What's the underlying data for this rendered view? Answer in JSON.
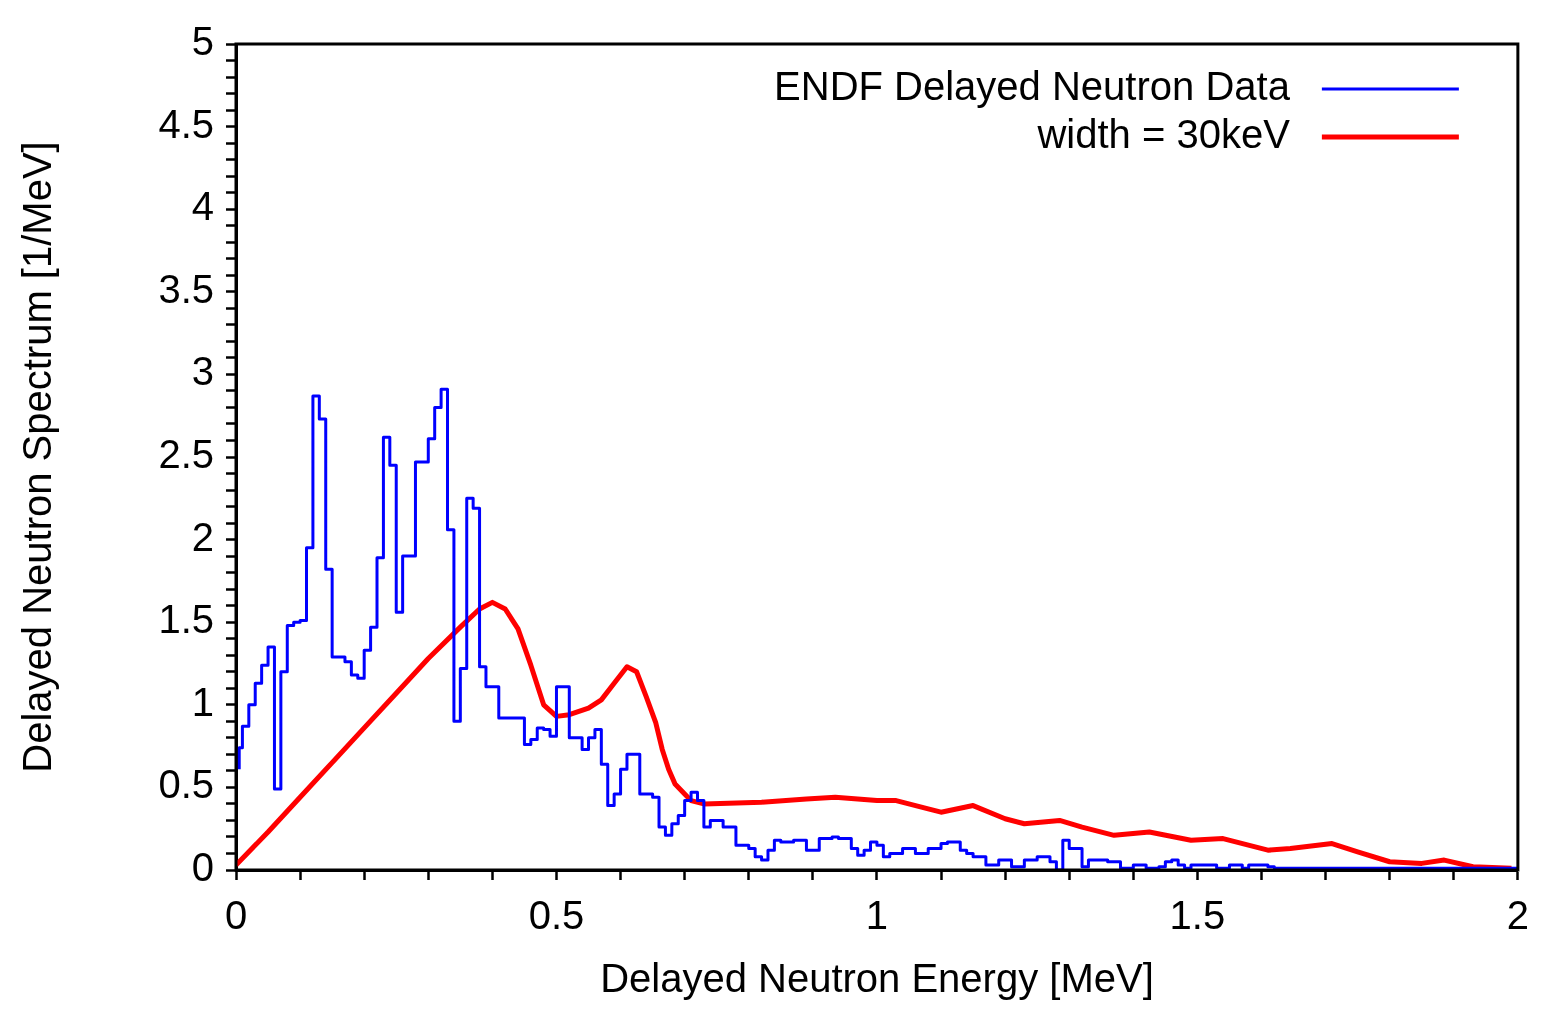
{
  "chart_data": {
    "type": "step",
    "xlabel": "Delayed Neutron Energy [MeV]",
    "ylabel": "Delayed Neutron Spectrum [1/MeV]",
    "xlim": [
      0,
      2
    ],
    "ylim": [
      0,
      5
    ],
    "xticks": [
      0,
      {
        "value": 0.1,
        "label": null
      },
      {
        "value": 0.2,
        "label": null
      },
      {
        "value": 0.3,
        "label": null
      },
      {
        "value": 0.4,
        "label": null
      },
      0.5,
      {
        "value": 0.6,
        "label": null
      },
      {
        "value": 0.7,
        "label": null
      },
      {
        "value": 0.8,
        "label": null
      },
      {
        "value": 0.9,
        "label": null
      },
      1,
      {
        "value": 1.1,
        "label": null
      },
      {
        "value": 1.2,
        "label": null
      },
      {
        "value": 1.3,
        "label": null
      },
      {
        "value": 1.4,
        "label": null
      },
      1.5,
      {
        "value": 1.6,
        "label": null
      },
      {
        "value": 1.7,
        "label": null
      },
      {
        "value": 1.8,
        "label": null
      },
      {
        "value": 1.9,
        "label": null
      },
      2
    ],
    "yticks": [
      0,
      {
        "value": 0.1,
        "label": null
      },
      {
        "value": 0.2,
        "label": null
      },
      {
        "value": 0.3,
        "label": null
      },
      {
        "value": 0.4,
        "label": null
      },
      0.5,
      {
        "value": 0.6,
        "label": null
      },
      {
        "value": 0.7,
        "label": null
      },
      {
        "value": 0.8,
        "label": null
      },
      {
        "value": 0.9,
        "label": null
      },
      1,
      {
        "value": 1.1,
        "label": null
      },
      {
        "value": 1.2,
        "label": null
      },
      {
        "value": 1.3,
        "label": null
      },
      {
        "value": 1.4,
        "label": null
      },
      1.5,
      {
        "value": 1.6,
        "label": null
      },
      {
        "value": 1.7,
        "label": null
      },
      {
        "value": 1.8,
        "label": null
      },
      {
        "value": 1.9,
        "label": null
      },
      2,
      {
        "value": 2.1,
        "label": null
      },
      {
        "value": 2.2,
        "label": null
      },
      {
        "value": 2.3,
        "label": null
      },
      {
        "value": 2.4,
        "label": null
      },
      2.5,
      {
        "value": 2.6,
        "label": null
      },
      {
        "value": 2.7,
        "label": null
      },
      {
        "value": 2.8,
        "label": null
      },
      {
        "value": 2.9,
        "label": null
      },
      3,
      {
        "value": 3.1,
        "label": null
      },
      {
        "value": 3.2,
        "label": null
      },
      {
        "value": 3.3,
        "label": null
      },
      {
        "value": 3.4,
        "label": null
      },
      3.5,
      {
        "value": 3.6,
        "label": null
      },
      {
        "value": 3.7,
        "label": null
      },
      {
        "value": 3.8,
        "label": null
      },
      {
        "value": 3.9,
        "label": null
      },
      4,
      {
        "value": 4.1,
        "label": null
      },
      {
        "value": 4.2,
        "label": null
      },
      {
        "value": 4.3,
        "label": null
      },
      {
        "value": 4.4,
        "label": null
      },
      4.5,
      {
        "value": 4.6,
        "label": null
      },
      {
        "value": 4.7,
        "label": null
      },
      {
        "value": 4.8,
        "label": null
      },
      {
        "value": 4.9,
        "label": null
      },
      5
    ],
    "grid": false,
    "legend": "top right",
    "series": [
      {
        "name": "ENDF Delayed Neutron Data",
        "color": "#0000ff",
        "x": [
          0.005,
          0.01,
          0.02,
          0.03,
          0.04,
          0.05,
          0.06,
          0.07,
          0.08,
          0.09,
          0.1,
          0.11,
          0.12,
          0.13,
          0.14,
          0.15,
          0.17,
          0.18,
          0.19,
          0.2,
          0.21,
          0.22,
          0.23,
          0.24,
          0.25,
          0.26,
          0.28,
          0.3,
          0.31,
          0.32,
          0.33,
          0.34,
          0.35,
          0.36,
          0.37,
          0.38,
          0.39,
          0.41,
          0.45,
          0.46,
          0.47,
          0.48,
          0.49,
          0.5,
          0.52,
          0.54,
          0.55,
          0.56,
          0.57,
          0.58,
          0.59,
          0.6,
          0.61,
          0.63,
          0.65,
          0.66,
          0.67,
          0.68,
          0.69,
          0.7,
          0.71,
          0.72,
          0.73,
          0.74,
          0.76,
          0.78,
          0.8,
          0.81,
          0.82,
          0.83,
          0.84,
          0.85,
          0.87,
          0.89,
          0.91,
          0.93,
          0.94,
          0.96,
          0.97,
          0.98,
          0.99,
          1.0,
          1.01,
          1.02,
          1.04,
          1.06,
          1.08,
          1.1,
          1.11,
          1.13,
          1.14,
          1.15,
          1.17,
          1.19,
          1.21,
          1.23,
          1.25,
          1.27,
          1.28,
          1.29,
          1.3,
          1.32,
          1.33,
          1.36,
          1.38,
          1.4,
          1.42,
          1.44,
          1.45,
          1.46,
          1.47,
          1.48,
          1.49,
          1.53,
          1.55,
          1.57,
          1.58,
          1.61,
          1.62,
          1.64,
          1.66,
          2.0
        ],
        "values": [
          0.61,
          0.74,
          0.87,
          1.0,
          1.13,
          1.24,
          1.35,
          0.49,
          1.2,
          1.48,
          1.5,
          1.51,
          1.95,
          2.87,
          2.73,
          1.82,
          1.29,
          1.26,
          1.18,
          1.16,
          1.33,
          1.47,
          1.89,
          2.62,
          2.45,
          1.56,
          1.9,
          2.47,
          2.61,
          2.8,
          2.91,
          2.06,
          0.9,
          1.22,
          2.25,
          2.19,
          1.23,
          1.11,
          0.92,
          0.76,
          0.79,
          0.86,
          0.85,
          0.81,
          1.11,
          0.8,
          0.73,
          0.8,
          0.85,
          0.64,
          0.39,
          0.46,
          0.61,
          0.7,
          0.46,
          0.44,
          0.26,
          0.21,
          0.28,
          0.33,
          0.42,
          0.47,
          0.42,
          0.26,
          0.3,
          0.26,
          0.15,
          0.13,
          0.08,
          0.06,
          0.12,
          0.18,
          0.17,
          0.18,
          0.12,
          0.19,
          0.2,
          0.19,
          0.13,
          0.09,
          0.12,
          0.17,
          0.15,
          0.08,
          0.1,
          0.13,
          0.1,
          0.13,
          0.16,
          0.17,
          0.12,
          0.1,
          0.08,
          0.03,
          0.06,
          0.02,
          0.06,
          0.08,
          0.05,
          0.0,
          0.18,
          0.13,
          0.02,
          0.06,
          0.05,
          0.01,
          0.03,
          0.01,
          0.02,
          0.05,
          0.06,
          0.03,
          0.01,
          0.03,
          0.01,
          0.03,
          0.01,
          0.03,
          0.02,
          0.01,
          0.01,
          0.01
        ]
      },
      {
        "name": "width = 30keV",
        "color": "#ff0000",
        "type": "line",
        "x": [
          0,
          0.05,
          0.1,
          0.15,
          0.2,
          0.25,
          0.3,
          0.35,
          0.38,
          0.4,
          0.42,
          0.44,
          0.46,
          0.48,
          0.5,
          0.52,
          0.55,
          0.57,
          0.59,
          0.61,
          0.625,
          0.64,
          0.655,
          0.665,
          0.675,
          0.685,
          0.7,
          0.71,
          0.73,
          0.82,
          0.89,
          0.935,
          1.0,
          1.03,
          1.08,
          1.1,
          1.15,
          1.2,
          1.23,
          1.285,
          1.32,
          1.37,
          1.425,
          1.49,
          1.54,
          1.61,
          1.645,
          1.71,
          1.75,
          1.8,
          1.85,
          1.885,
          1.93,
          1.99
        ],
        "values": [
          0.03,
          0.23,
          0.44,
          0.65,
          0.86,
          1.07,
          1.28,
          1.47,
          1.58,
          1.62,
          1.58,
          1.46,
          1.24,
          1.0,
          0.93,
          0.94,
          0.98,
          1.03,
          1.13,
          1.23,
          1.2,
          1.05,
          0.89,
          0.73,
          0.61,
          0.52,
          0.46,
          0.42,
          0.4,
          0.41,
          0.43,
          0.44,
          0.42,
          0.42,
          0.37,
          0.35,
          0.39,
          0.31,
          0.28,
          0.3,
          0.26,
          0.21,
          0.23,
          0.18,
          0.19,
          0.12,
          0.13,
          0.16,
          0.11,
          0.05,
          0.04,
          0.06,
          0.02,
          0.01
        ]
      }
    ]
  }
}
